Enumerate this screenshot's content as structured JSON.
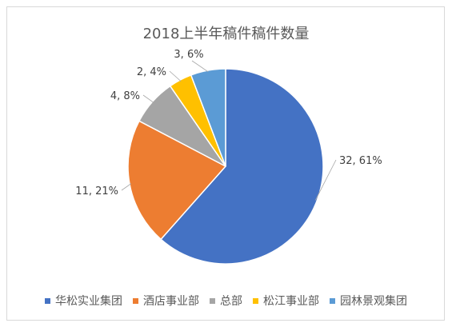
{
  "chart_data": {
    "type": "pie",
    "title": "2018上半年稿件稿件数量",
    "categories": [
      "华松实业集团",
      "酒店事业部",
      "总部",
      "松江事业部",
      "园林景观集团"
    ],
    "values": [
      32,
      11,
      4,
      2,
      3
    ],
    "data_labels": [
      "32, 61%",
      "11, 21%",
      "4, 8%",
      "2, 4%",
      "3, 6%"
    ],
    "colors": [
      "#4472c4",
      "#ed7d31",
      "#a5a5a5",
      "#ffc000",
      "#5b9bd5"
    ],
    "legend_position": "bottom",
    "start_angle": "12 o'clock",
    "direction": "clockwise"
  }
}
